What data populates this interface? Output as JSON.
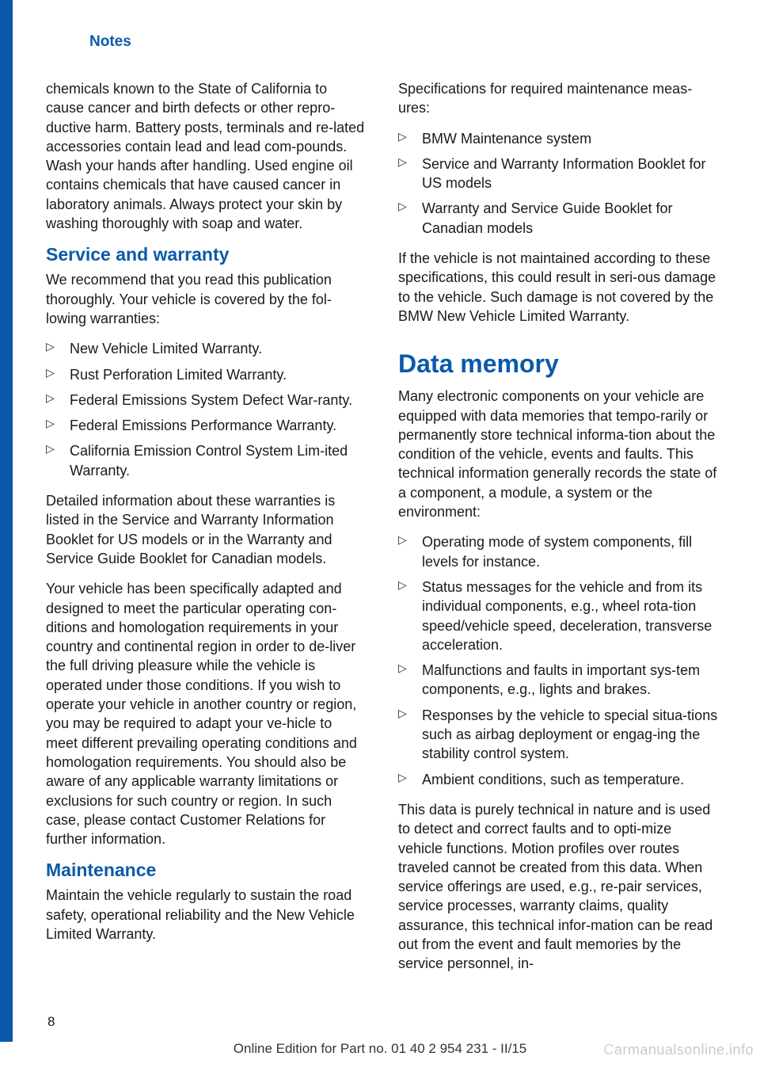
{
  "colors": {
    "brand_blue": "#0a5aa8",
    "text": "#1a1a1a",
    "background": "#ffffff",
    "watermark": "rgba(100,100,100,0.35)"
  },
  "typography": {
    "body_fontsize": 18,
    "h1_fontsize": 32,
    "h2_fontsize": 23,
    "header_fontsize": 19,
    "font_family": "Arial, Helvetica, sans-serif"
  },
  "header": {
    "section": "Notes"
  },
  "left_col": {
    "p1": "chemicals known to the State of California to cause cancer and birth defects or other repro‐ductive harm. Battery posts, terminals and re‐lated accessories contain lead and lead com‐pounds. Wash your hands after handling. Used engine oil contains chemicals that have caused cancer in laboratory animals. Always protect your skin by washing thoroughly with soap and water.",
    "h_service": "Service and warranty",
    "p2": "We recommend that you read this publication thoroughly. Your vehicle is covered by the fol‐lowing warranties:",
    "warranties": [
      "New Vehicle Limited Warranty.",
      "Rust Perforation Limited Warranty.",
      "Federal Emissions System Defect War‐ranty.",
      "Federal Emissions Performance Warranty.",
      "California Emission Control System Lim‐ited Warranty."
    ],
    "p3": "Detailed information about these warranties is listed in the Service and Warranty Information Booklet for US models or in the Warranty and Service Guide Booklet for Canadian models.",
    "p4": "Your vehicle has been specifically adapted and designed to meet the particular operating con‐ditions and homologation requirements in your country and continental region in order to de‐liver the full driving pleasure while the vehicle is operated under those conditions. If you wish to operate your vehicle in another country or region, you may be required to adapt your ve‐hicle to meet different prevailing operating conditions and homologation requirements. You should also be aware of any applicable warranty limitations or exclusions for such country or region. In such case, please contact Customer Relations for further information.",
    "h_maintenance": "Maintenance",
    "p5": "Maintain the vehicle regularly to sustain the road safety, operational reliability and the New Vehicle Limited Warranty."
  },
  "right_col": {
    "p1": "Specifications for required maintenance meas‐ures:",
    "specs": [
      "BMW Maintenance system",
      "Service and Warranty Information Booklet for US models",
      "Warranty and Service Guide Booklet for Canadian models"
    ],
    "p2": "If the vehicle is not maintained according to these specifications, this could result in seri‐ous damage to the vehicle. Such damage is not covered by the BMW New Vehicle Limited Warranty.",
    "h_data": "Data memory",
    "p3": "Many electronic components on your vehicle are equipped with data memories that tempo‐rarily or permanently store technical informa‐tion about the condition of the vehicle, events and faults. This technical information generally records the state of a component, a module, a system or the environment:",
    "data_items": [
      "Operating mode of system components, fill levels for instance.",
      "Status messages for the vehicle and from its individual components, e.g., wheel rota‐tion speed/vehicle speed, deceleration, transverse acceleration.",
      "Malfunctions and faults in important sys‐tem components, e.g., lights and brakes.",
      "Responses by the vehicle to special situa‐tions such as airbag deployment or engag‐ing the stability control system.",
      "Ambient conditions, such as temperature."
    ],
    "p4": "This data is purely technical in nature and is used to detect and correct faults and to opti‐mize vehicle functions. Motion profiles over routes traveled cannot be created from this data. When service offerings are used, e.g., re‐pair services, service processes, warranty claims, quality assurance, this technical infor‐mation can be read out from the event and fault memories by the service personnel, in‐"
  },
  "footer": {
    "page_number": "8",
    "edition_text": "Online Edition for Part no. 01 40 2 954 231 - II/15",
    "watermark_1": "C",
    "watermark_2": "armanualsonline.info"
  }
}
